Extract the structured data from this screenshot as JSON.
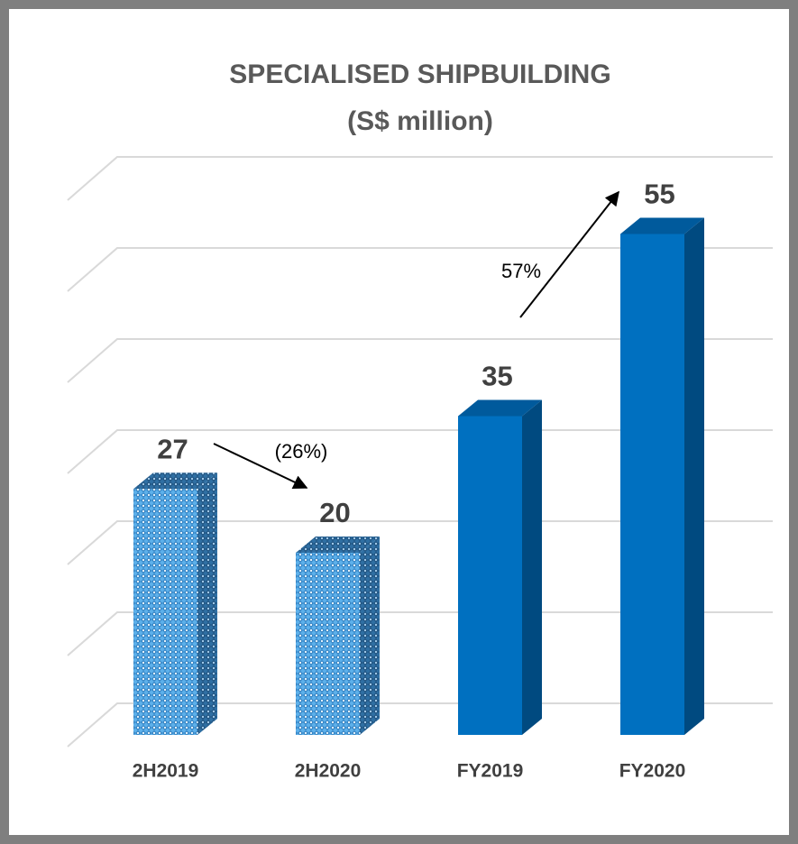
{
  "chart_data": {
    "type": "bar3d",
    "title": "SPECIALISED SHIPBUILDING",
    "subtitle": "(S$ million)",
    "categories": [
      "2H2019",
      "2H2020",
      "FY2019",
      "FY2020"
    ],
    "values": [
      27,
      20,
      35,
      55
    ],
    "colors": [
      "#4fa3e0",
      "#4fa3e0",
      "#0070c0",
      "#0070c0"
    ],
    "patterned": [
      true,
      true,
      false,
      false
    ],
    "ylim": [
      0,
      60
    ],
    "yticks": [
      0,
      10,
      20,
      30,
      40,
      50,
      60
    ],
    "grid": true,
    "annotations": [
      "(26%)",
      "57%"
    ]
  }
}
